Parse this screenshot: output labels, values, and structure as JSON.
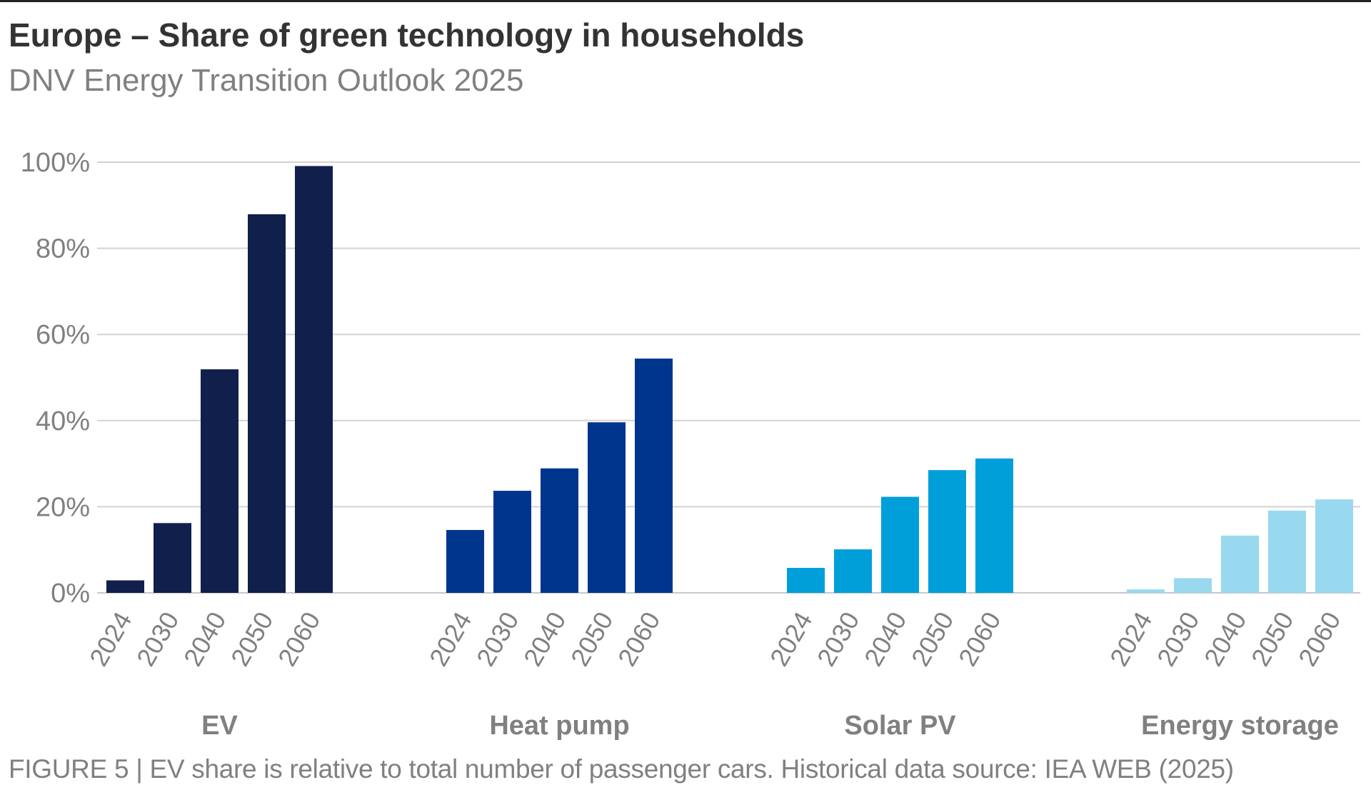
{
  "header": {
    "title": "Europe – Share of green technology in households",
    "subtitle": "DNV Energy Transition Outlook 2025"
  },
  "footer": {
    "caption": "FIGURE 5 | EV share is relative to total number of passenger cars. Historical data source: IEA WEB (2025)"
  },
  "chart_data": {
    "type": "bar",
    "title": "Europe – Share of green technology in households",
    "subtitle": "DNV Energy Transition Outlook 2025",
    "xlabel": "",
    "ylabel": "",
    "ylim": [
      0,
      100
    ],
    "yticks": [
      0,
      20,
      40,
      60,
      80,
      100
    ],
    "ytick_labels": [
      "0%",
      "20%",
      "40%",
      "60%",
      "80%",
      "100%"
    ],
    "grid": true,
    "legend": "none",
    "categories": [
      "2024",
      "2030",
      "2040",
      "2050",
      "2060"
    ],
    "groups": [
      {
        "name": "EV",
        "color": "#101f4b",
        "values": [
          2.9,
          16.2,
          51.9,
          87.9,
          99.1
        ]
      },
      {
        "name": "Heat pump",
        "color": "#00358e",
        "values": [
          14.6,
          23.7,
          28.9,
          39.6,
          54.4
        ]
      },
      {
        "name": "Solar PV",
        "color": "#009fda",
        "values": [
          5.8,
          10.1,
          22.3,
          28.5,
          31.2
        ]
      },
      {
        "name": "Energy storage",
        "color": "#99d9f0",
        "values": [
          0.8,
          3.4,
          13.3,
          19.1,
          21.7
        ]
      }
    ]
  }
}
